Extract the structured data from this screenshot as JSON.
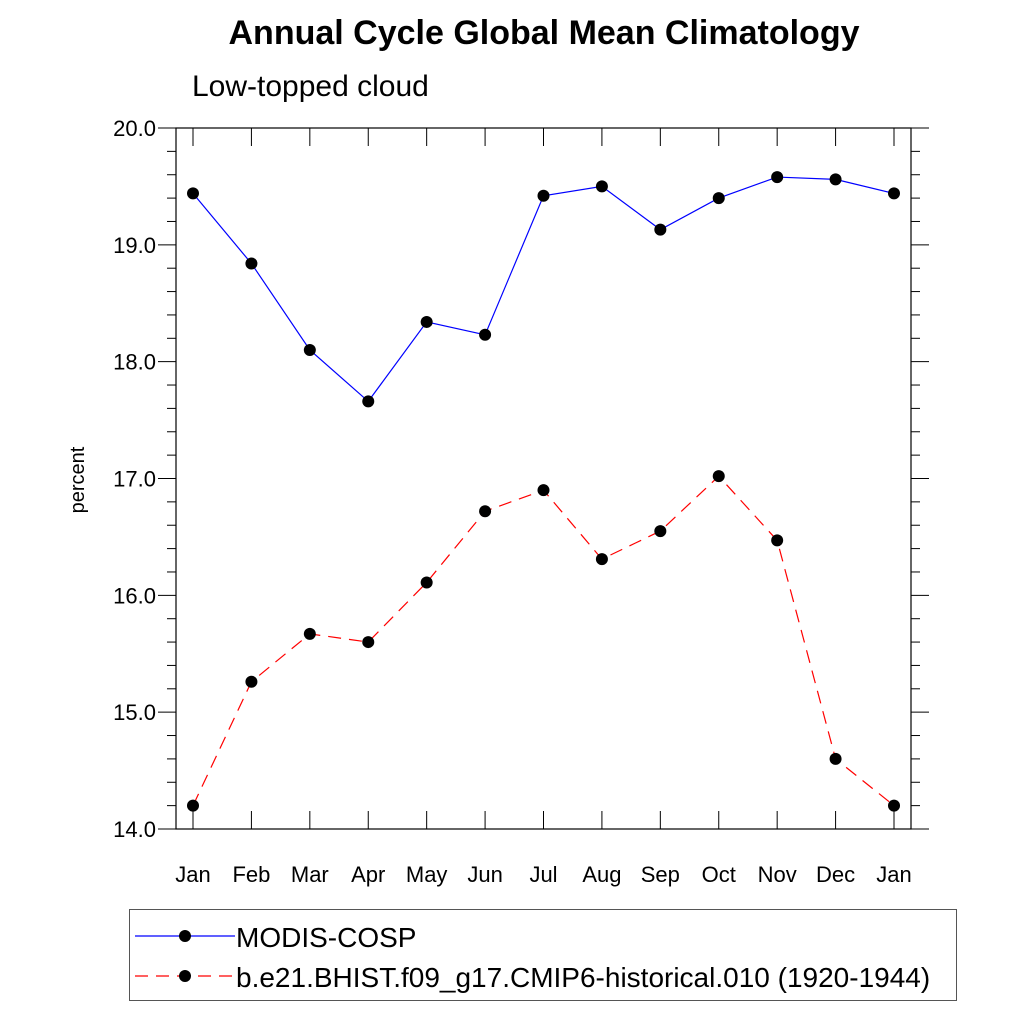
{
  "chart_data": {
    "type": "line",
    "title": "Annual Cycle Global Mean Climatology",
    "subtitle": "Low-topped cloud",
    "xlabel": "",
    "ylabel": "percent",
    "categories": [
      "Jan",
      "Feb",
      "Mar",
      "Apr",
      "May",
      "Jun",
      "Jul",
      "Aug",
      "Sep",
      "Oct",
      "Nov",
      "Dec",
      "Jan"
    ],
    "ylim": [
      14.0,
      20.0
    ],
    "yticks": [
      "14.0",
      "15.0",
      "16.0",
      "17.0",
      "18.0",
      "19.0",
      "20.0"
    ],
    "grid": false,
    "legend_position": "bottom",
    "series": [
      {
        "name": "MODIS-COSP",
        "color": "#0000ff",
        "dash": "solid",
        "values": [
          19.44,
          18.84,
          18.1,
          17.66,
          18.34,
          18.23,
          19.42,
          19.5,
          19.13,
          19.4,
          19.58,
          19.56,
          19.44
        ]
      },
      {
        "name": "b.e21.BHIST.f09_g17.CMIP6-historical.010 (1920-1944)",
        "color": "#ff0000",
        "dash": "dashed",
        "values": [
          14.2,
          15.26,
          15.67,
          15.6,
          16.11,
          16.72,
          16.9,
          16.31,
          16.55,
          17.02,
          16.47,
          14.6,
          14.2
        ]
      }
    ]
  }
}
